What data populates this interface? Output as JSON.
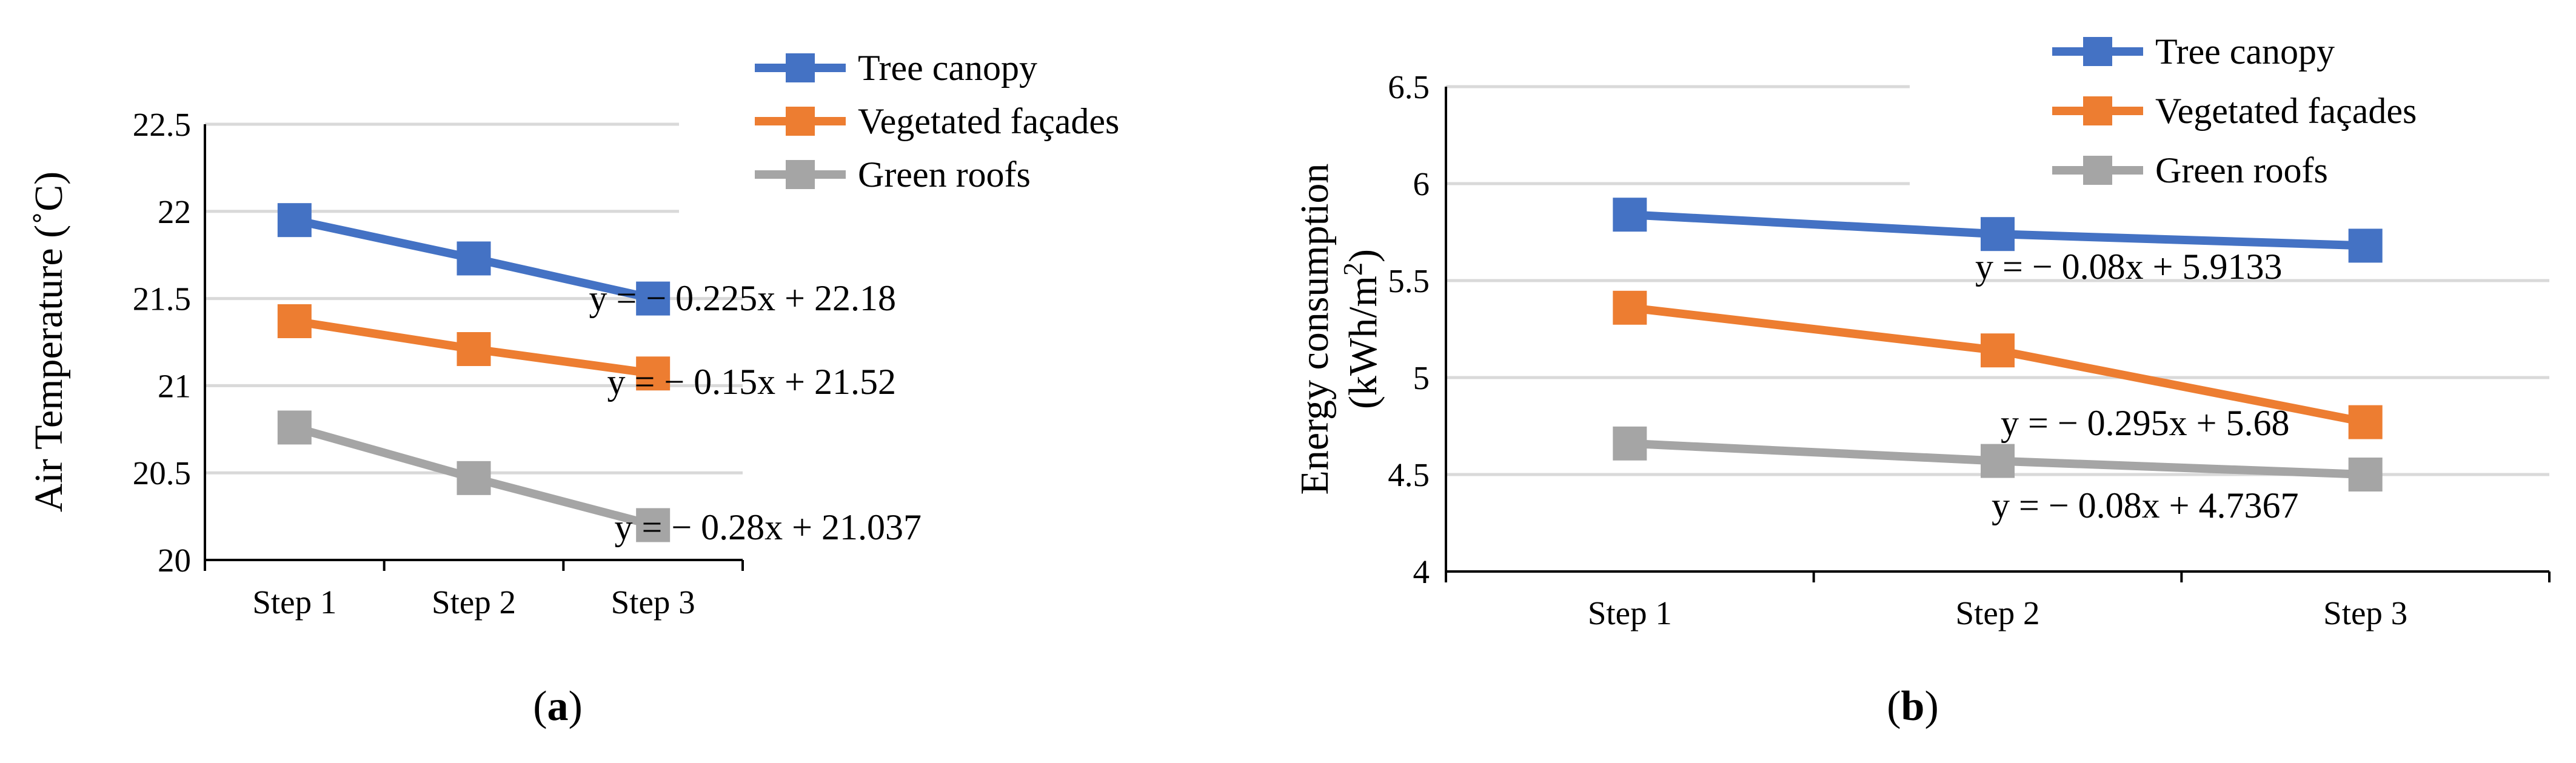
{
  "chart_data": [
    {
      "type": "line",
      "panel_label": "a",
      "title": "",
      "xlabel": "",
      "ylabel": "Air Temperature (˚C)",
      "categories": [
        "Step 1",
        "Step 2",
        "Step 3"
      ],
      "ylim": [
        20,
        22.5
      ],
      "yticks": [
        20,
        20.5,
        21,
        21.5,
        22,
        22.5
      ],
      "ytick_labels": [
        "20",
        "20.5",
        "21",
        "21.5",
        "22",
        "22.5"
      ],
      "grid": true,
      "legend": "top-right",
      "series": [
        {
          "name": "Tree canopy",
          "color": "#4472C4",
          "values": [
            21.95,
            21.73,
            21.5
          ]
        },
        {
          "name": "Vegetated façades",
          "color": "#ED7D31",
          "values": [
            21.37,
            21.21,
            21.07
          ]
        },
        {
          "name": "Green roofs",
          "color": "#A5A5A5",
          "values": [
            20.76,
            20.47,
            20.2
          ]
        }
      ],
      "annotations": [
        {
          "text": "y = − 0.225x + 22.18",
          "x": 2,
          "y": 21.42
        },
        {
          "text": "y = − 0.15x + 21.52",
          "x": 2,
          "y": 20.95
        },
        {
          "text": "y = − 0.28x + 21.037",
          "x": 2,
          "y": 20.12
        }
      ]
    },
    {
      "type": "line",
      "panel_label": "b",
      "title": "",
      "xlabel": "",
      "ylabel_line1": "Energy consumption",
      "ylabel_line2": "(kWh/m",
      "ylabel_sup": "2",
      "ylabel_close": ")",
      "categories": [
        "Step 1",
        "Step 2",
        "Step 3"
      ],
      "ylim": [
        4,
        6.5
      ],
      "yticks": [
        4,
        4.5,
        5,
        5.5,
        6,
        6.5
      ],
      "ytick_labels": [
        "4",
        "4.5",
        "5",
        "5.5",
        "6",
        "6.5"
      ],
      "grid": true,
      "legend": "top-right",
      "series": [
        {
          "name": "Tree canopy",
          "color": "#4472C4",
          "values": [
            5.84,
            5.74,
            5.68
          ]
        },
        {
          "name": "Vegetated façades",
          "color": "#ED7D31",
          "values": [
            5.36,
            5.14,
            4.77
          ]
        },
        {
          "name": "Green roofs",
          "color": "#A5A5A5",
          "values": [
            4.66,
            4.57,
            4.5
          ]
        }
      ],
      "annotations": [
        {
          "text": "y = − 0.08x + 5.9133",
          "x": 2.2,
          "y": 5.55
        },
        {
          "text": "y = − 0.295x + 5.68",
          "x": 2.2,
          "y": 4.72
        },
        {
          "text": "y = − 0.08x + 4.7367",
          "x": 2.2,
          "y": 4.32
        }
      ]
    }
  ]
}
